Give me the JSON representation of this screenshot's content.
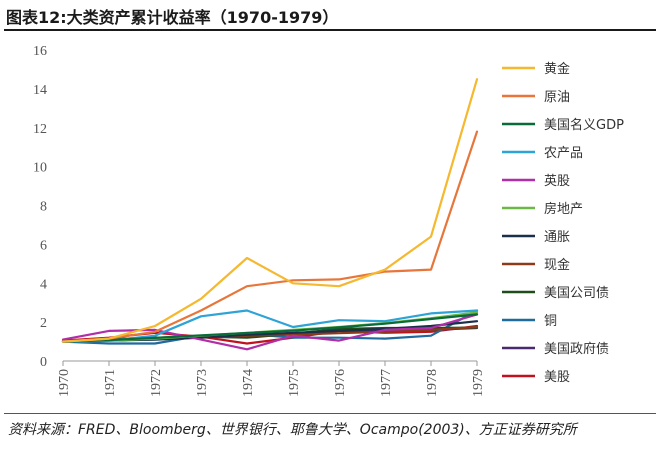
{
  "title": "图表12:大类资产累计收益率（1970-1979）",
  "source": "资料来源：FRED、Bloomberg、世界银行、耶鲁大学、Ocampo(2003)、方正证券研究所",
  "chart_data": {
    "type": "line",
    "title": "图表12:大类资产累计收益率（1970-1979）",
    "xlabel": "",
    "ylabel": "",
    "x": [
      "1970",
      "1971",
      "1972",
      "1973",
      "1974",
      "1975",
      "1976",
      "1977",
      "1978",
      "1979"
    ],
    "ylim": [
      0,
      16
    ],
    "yticks": [
      0,
      2,
      4,
      6,
      8,
      10,
      12,
      14,
      16
    ],
    "grid": false,
    "legend_position": "right",
    "series": [
      {
        "name": "黄金",
        "color": "#f5b82e",
        "values": [
          1.0,
          1.15,
          1.8,
          3.2,
          5.3,
          4.0,
          3.85,
          4.7,
          6.4,
          14.5
        ]
      },
      {
        "name": "原油",
        "color": "#e8763a",
        "values": [
          1.0,
          1.15,
          1.5,
          2.6,
          3.85,
          4.15,
          4.2,
          4.6,
          4.7,
          11.8
        ]
      },
      {
        "name": "美国名义GDP",
        "color": "#0a6b3a",
        "values": [
          1.0,
          1.08,
          1.19,
          1.32,
          1.44,
          1.56,
          1.73,
          1.92,
          2.16,
          2.4
        ]
      },
      {
        "name": "农产品",
        "color": "#2ea3d5",
        "values": [
          1.0,
          1.05,
          1.3,
          2.3,
          2.6,
          1.75,
          2.1,
          2.05,
          2.45,
          2.6
        ]
      },
      {
        "name": "英股",
        "color": "#b02ea8",
        "values": [
          1.1,
          1.55,
          1.6,
          1.1,
          0.6,
          1.3,
          1.05,
          1.6,
          1.7,
          2.4
        ]
      },
      {
        "name": "房地产",
        "color": "#6cb847",
        "values": [
          1.0,
          1.05,
          1.15,
          1.3,
          1.45,
          1.6,
          1.75,
          1.95,
          2.2,
          2.5
        ]
      },
      {
        "name": "通胀",
        "color": "#1c2f4a",
        "values": [
          1.0,
          1.05,
          1.1,
          1.2,
          1.35,
          1.45,
          1.55,
          1.65,
          1.8,
          2.05
        ]
      },
      {
        "name": "现金",
        "color": "#8b3a1a",
        "values": [
          1.0,
          1.06,
          1.12,
          1.2,
          1.3,
          1.36,
          1.43,
          1.5,
          1.6,
          1.75
        ]
      },
      {
        "name": "美国公司债",
        "color": "#1f4d1a",
        "values": [
          1.0,
          1.12,
          1.2,
          1.25,
          1.2,
          1.4,
          1.65,
          1.7,
          1.7,
          1.72
        ]
      },
      {
        "name": "铜",
        "color": "#1f6b9e",
        "values": [
          1.0,
          0.9,
          0.9,
          1.3,
          1.4,
          1.2,
          1.2,
          1.15,
          1.3,
          2.6
        ]
      },
      {
        "name": "美国政府债",
        "color": "#4a2a6e",
        "values": [
          1.0,
          1.12,
          1.2,
          1.25,
          1.3,
          1.4,
          1.55,
          1.6,
          1.6,
          1.7
        ]
      },
      {
        "name": "美股",
        "color": "#c0111f",
        "values": [
          1.05,
          1.2,
          1.45,
          1.25,
          0.9,
          1.2,
          1.55,
          1.45,
          1.5,
          1.8
        ]
      }
    ]
  }
}
